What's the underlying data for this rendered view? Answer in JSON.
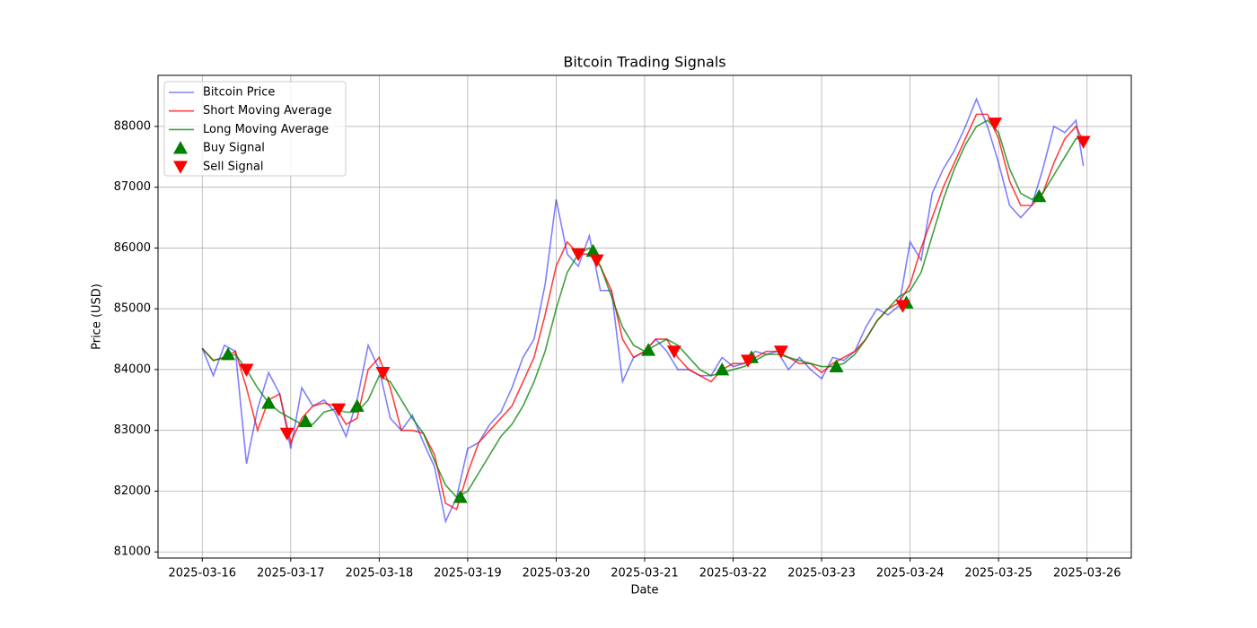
{
  "chart_data": {
    "type": "line",
    "title": "Bitcoin Trading Signals",
    "x_label": "Date",
    "y_label": "Price (USD)",
    "x": [
      "2025-03-16 00:00",
      "2025-03-16 03:00",
      "2025-03-16 06:00",
      "2025-03-16 09:00",
      "2025-03-16 12:00",
      "2025-03-16 15:00",
      "2025-03-16 18:00",
      "2025-03-16 21:00",
      "2025-03-17 00:00",
      "2025-03-17 03:00",
      "2025-03-17 06:00",
      "2025-03-17 09:00",
      "2025-03-17 12:00",
      "2025-03-17 15:00",
      "2025-03-17 18:00",
      "2025-03-17 21:00",
      "2025-03-18 00:00",
      "2025-03-18 03:00",
      "2025-03-18 06:00",
      "2025-03-18 09:00",
      "2025-03-18 12:00",
      "2025-03-18 15:00",
      "2025-03-18 18:00",
      "2025-03-18 21:00",
      "2025-03-19 00:00",
      "2025-03-19 03:00",
      "2025-03-19 06:00",
      "2025-03-19 09:00",
      "2025-03-19 12:00",
      "2025-03-19 15:00",
      "2025-03-19 18:00",
      "2025-03-19 21:00",
      "2025-03-20 00:00",
      "2025-03-20 03:00",
      "2025-03-20 06:00",
      "2025-03-20 09:00",
      "2025-03-20 12:00",
      "2025-03-20 15:00",
      "2025-03-20 18:00",
      "2025-03-20 21:00",
      "2025-03-21 00:00",
      "2025-03-21 03:00",
      "2025-03-21 06:00",
      "2025-03-21 09:00",
      "2025-03-21 12:00",
      "2025-03-21 15:00",
      "2025-03-21 18:00",
      "2025-03-21 21:00",
      "2025-03-22 00:00",
      "2025-03-22 03:00",
      "2025-03-22 06:00",
      "2025-03-22 09:00",
      "2025-03-22 12:00",
      "2025-03-22 15:00",
      "2025-03-22 18:00",
      "2025-03-22 21:00",
      "2025-03-23 00:00",
      "2025-03-23 03:00",
      "2025-03-23 06:00",
      "2025-03-23 09:00",
      "2025-03-23 12:00",
      "2025-03-23 15:00",
      "2025-03-23 18:00",
      "2025-03-23 21:00",
      "2025-03-24 00:00",
      "2025-03-24 03:00",
      "2025-03-24 06:00",
      "2025-03-24 09:00",
      "2025-03-24 12:00",
      "2025-03-24 15:00",
      "2025-03-24 18:00",
      "2025-03-24 21:00",
      "2025-03-25 00:00",
      "2025-03-25 03:00",
      "2025-03-25 06:00",
      "2025-03-25 09:00",
      "2025-03-25 12:00",
      "2025-03-25 15:00",
      "2025-03-25 18:00",
      "2025-03-25 21:00",
      "2025-03-25 23:00"
    ],
    "series": [
      {
        "name": "Bitcoin Price",
        "color": "blue",
        "alpha": 0.5,
        "values": [
          84350,
          83900,
          84400,
          84300,
          82450,
          83350,
          83950,
          83600,
          82700,
          83700,
          83400,
          83500,
          83300,
          82900,
          83500,
          84400,
          84000,
          83200,
          83000,
          83250,
          82800,
          82400,
          81500,
          81900,
          82700,
          82800,
          83100,
          83300,
          83700,
          84200,
          84500,
          85400,
          86800,
          85900,
          85700,
          86200,
          85300,
          85300,
          83800,
          84200,
          84300,
          84500,
          84300,
          84000,
          84000,
          83900,
          83900,
          84200,
          84050,
          84100,
          84300,
          84250,
          84300,
          84000,
          84200,
          84000,
          83850,
          84200,
          84150,
          84300,
          84700,
          85000,
          84900,
          85050,
          86100,
          85800,
          86900,
          87300,
          87600,
          88000,
          88450,
          88000,
          87400,
          86700,
          86500,
          86700,
          87300,
          88000,
          87900,
          88100,
          87350
        ]
      },
      {
        "name": "Short Moving Average",
        "color": "red",
        "alpha": 0.75,
        "values": [
          84350,
          84150,
          84200,
          84300,
          83700,
          83000,
          83500,
          83600,
          82800,
          83200,
          83400,
          83450,
          83400,
          83100,
          83200,
          84000,
          84200,
          83700,
          83000,
          83000,
          82950,
          82600,
          81800,
          81700,
          82300,
          82800,
          83000,
          83200,
          83400,
          83800,
          84200,
          84900,
          85700,
          86100,
          85900,
          85900,
          85700,
          85300,
          84500,
          84200,
          84300,
          84500,
          84500,
          84200,
          84000,
          83900,
          83800,
          84000,
          84100,
          84100,
          84200,
          84300,
          84300,
          84200,
          84100,
          84100,
          83950,
          84100,
          84200,
          84300,
          84500,
          84800,
          85000,
          85100,
          85400,
          86000,
          86500,
          87000,
          87400,
          87800,
          88200,
          88200,
          87800,
          87100,
          86700,
          86700,
          86900,
          87400,
          87800,
          88000,
          87750
        ]
      },
      {
        "name": "Long Moving Average",
        "color": "green",
        "alpha": 0.75,
        "values": [
          84350,
          84150,
          84200,
          84250,
          84000,
          83700,
          83450,
          83300,
          83200,
          83100,
          83100,
          83300,
          83350,
          83300,
          83300,
          83500,
          83900,
          83800,
          83500,
          83200,
          82950,
          82500,
          82100,
          81900,
          82000,
          82300,
          82600,
          82900,
          83100,
          83400,
          83800,
          84300,
          85000,
          85600,
          85900,
          86000,
          85700,
          85200,
          84700,
          84400,
          84300,
          84400,
          84500,
          84400,
          84200,
          84000,
          83900,
          83950,
          84000,
          84050,
          84150,
          84250,
          84250,
          84200,
          84150,
          84100,
          84050,
          84050,
          84100,
          84250,
          84500,
          84800,
          85000,
          85200,
          85300,
          85600,
          86200,
          86800,
          87300,
          87700,
          88000,
          88100,
          87900,
          87300,
          86900,
          86800,
          86900,
          87200,
          87500,
          87800,
          87800
        ]
      },
      {
        "name": "Buy Signal",
        "color": "green",
        "marker": "triangle-up",
        "x": [
          "2025-03-16 07:00",
          "2025-03-16 18:00",
          "2025-03-17 04:00",
          "2025-03-17 18:00",
          "2025-03-18 22:00",
          "2025-03-20 10:00",
          "2025-03-21 01:00",
          "2025-03-21 21:00",
          "2025-03-22 05:00",
          "2025-03-23 04:00",
          "2025-03-23 23:00",
          "2025-03-25 11:00"
        ],
        "values": [
          84250,
          83450,
          83150,
          83400,
          81900,
          85950,
          84320,
          84000,
          84200,
          84050,
          85100,
          86850
        ]
      },
      {
        "name": "Sell Signal",
        "color": "red",
        "marker": "triangle-down",
        "x": [
          "2025-03-16 12:00",
          "2025-03-16 23:00",
          "2025-03-17 13:00",
          "2025-03-18 01:00",
          "2025-03-20 06:00",
          "2025-03-20 11:00",
          "2025-03-21 08:00",
          "2025-03-22 04:00",
          "2025-03-22 13:00",
          "2025-03-23 22:00",
          "2025-03-24 23:00",
          "2025-03-25 23:00"
        ],
        "values": [
          84000,
          82950,
          83350,
          83950,
          85900,
          85800,
          84300,
          84150,
          84300,
          85050,
          88050,
          87750
        ]
      }
    ],
    "xlim": [
      "2025-03-15 12:00",
      "2025-03-26 12:00"
    ],
    "xticks": [
      "2025-03-16",
      "2025-03-17",
      "2025-03-18",
      "2025-03-19",
      "2025-03-20",
      "2025-03-21",
      "2025-03-22",
      "2025-03-23",
      "2025-03-24",
      "2025-03-25",
      "2025-03-26"
    ],
    "ylim": [
      80900,
      88840
    ],
    "yticks": [
      81000,
      82000,
      83000,
      84000,
      85000,
      86000,
      87000,
      88000
    ],
    "grid": true,
    "legend": "upper left"
  }
}
